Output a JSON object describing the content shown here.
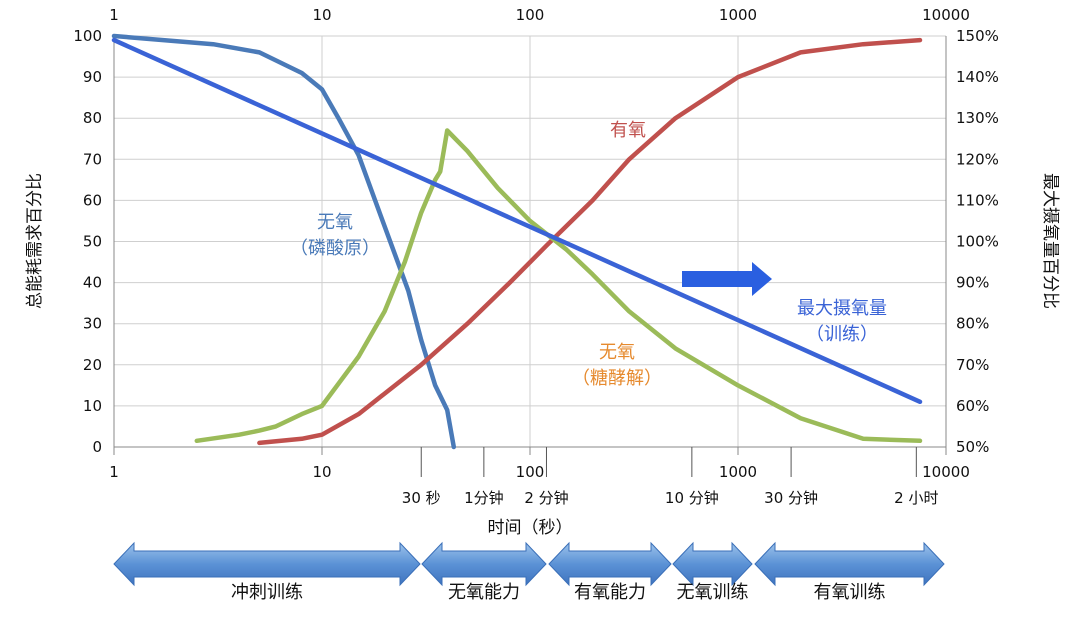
{
  "chart_data": {
    "type": "line",
    "x_scale": "log",
    "xlim": [
      1,
      10000
    ],
    "ylim": [
      0,
      100
    ],
    "y2lim": [
      50,
      150
    ],
    "grid": true,
    "xlabel": "时间（秒）",
    "ylabel": "总能耗需求百分比",
    "y2label": "最大摄氧量百分比",
    "x_ticks": [
      "1",
      "10",
      "100",
      "1000",
      "10000"
    ],
    "top_x_ticks": [
      "1",
      "10",
      "100",
      "1000",
      "10000"
    ],
    "y_ticks": [
      "0",
      "10",
      "20",
      "30",
      "40",
      "50",
      "60",
      "70",
      "80",
      "90",
      "100"
    ],
    "y2_ticks": [
      "50%",
      "60%",
      "70%",
      "80%",
      "90%",
      "100%",
      "110%",
      "120%",
      "130%",
      "140%",
      "150%"
    ],
    "time_markers": [
      {
        "label": "30 秒",
        "x": 30
      },
      {
        "label": "1分钟",
        "x": 60
      },
      {
        "label": "2 分钟",
        "x": 120
      },
      {
        "label": "10 分钟",
        "x": 600
      },
      {
        "label": "30 分钟",
        "x": 1800
      },
      {
        "label": "2 小时",
        "x": 7200
      }
    ],
    "series": [
      {
        "name": "无氧（磷酸原）",
        "color": "#4a7ab8",
        "points": [
          [
            1,
            100
          ],
          [
            3,
            98
          ],
          [
            5,
            96
          ],
          [
            8,
            91
          ],
          [
            10,
            87
          ],
          [
            12,
            80
          ],
          [
            15,
            71
          ],
          [
            18,
            60
          ],
          [
            22,
            48
          ],
          [
            26,
            38
          ],
          [
            30,
            26
          ],
          [
            35,
            15
          ],
          [
            40,
            9
          ],
          [
            42,
            3
          ],
          [
            43,
            0
          ]
        ]
      },
      {
        "name": "有氧",
        "color": "#c0504d",
        "points": [
          [
            5,
            1
          ],
          [
            8,
            2
          ],
          [
            10,
            3
          ],
          [
            15,
            8
          ],
          [
            20,
            13
          ],
          [
            30,
            20
          ],
          [
            50,
            30
          ],
          [
            80,
            40
          ],
          [
            120,
            49
          ],
          [
            200,
            60
          ],
          [
            300,
            70
          ],
          [
            500,
            80
          ],
          [
            1000,
            90
          ],
          [
            2000,
            96
          ],
          [
            4000,
            98
          ],
          [
            7500,
            99
          ]
        ]
      },
      {
        "name": "无氧（糖酵解）",
        "color": "#9bbb59",
        "points": [
          [
            2.5,
            1.5
          ],
          [
            4,
            3
          ],
          [
            5,
            4
          ],
          [
            6,
            5
          ],
          [
            8,
            8
          ],
          [
            10,
            10
          ],
          [
            15,
            22
          ],
          [
            20,
            33
          ],
          [
            25,
            45
          ],
          [
            30,
            57
          ],
          [
            35,
            65
          ],
          [
            37,
            67
          ],
          [
            40,
            77
          ],
          [
            50,
            72
          ],
          [
            70,
            63
          ],
          [
            100,
            55
          ],
          [
            150,
            48
          ],
          [
            200,
            42
          ],
          [
            300,
            33
          ],
          [
            500,
            24
          ],
          [
            1000,
            15
          ],
          [
            2000,
            7
          ],
          [
            4000,
            2
          ],
          [
            7500,
            1.5
          ]
        ]
      },
      {
        "name": "最大摄氧量（训练）",
        "color": "#3a63d6",
        "axis": "right",
        "points": [
          [
            1,
            149
          ],
          [
            7500,
            61
          ]
        ]
      }
    ],
    "annotations": [
      {
        "text": [
          "无氧",
          "（磷酸原）"
        ],
        "color": "#4a7ab8"
      },
      {
        "text": [
          "有氧"
        ],
        "color": "#c0504d"
      },
      {
        "text": [
          "无氧",
          "（糖酵解）"
        ],
        "color": "#e68a2e"
      },
      {
        "text": [
          "最大摄氧量",
          "（训练）"
        ],
        "color": "#3a63d6"
      }
    ],
    "training_bands": [
      {
        "label": "冲刺训练",
        "from": 1,
        "to": 30
      },
      {
        "label": "无氧能力",
        "from": 30,
        "to": 100
      },
      {
        "label": "有氧能力",
        "from": 100,
        "to": 600
      },
      {
        "label": "无氧训练",
        "from": 600,
        "to": 1500
      },
      {
        "label": "有氧训练",
        "from": 1500,
        "to": 10000
      }
    ]
  }
}
